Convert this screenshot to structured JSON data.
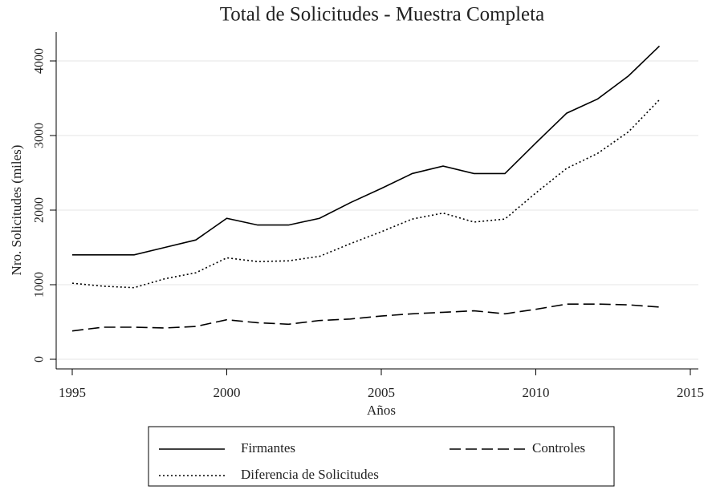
{
  "chart_data": {
    "type": "line",
    "title": "Total de Solicitudes - Muestra Completa",
    "x_label": "Años",
    "y_label": "Nro. Solicitudes (miles)",
    "x": [
      1995,
      1996,
      1997,
      1998,
      1999,
      2000,
      2001,
      2002,
      2003,
      2004,
      2005,
      2006,
      2007,
      2008,
      2009,
      2010,
      2011,
      2012,
      2013,
      2014
    ],
    "series": [
      {
        "name": "Firmantes",
        "color": "#000000",
        "line_style": "solid",
        "values": [
          1400,
          1400,
          1400,
          1500,
          1600,
          1890,
          1800,
          1800,
          1890,
          2100,
          2290,
          2490,
          2590,
          2490,
          2490,
          2900,
          3300,
          3490,
          3800,
          4200
        ]
      },
      {
        "name": "Controles",
        "color": "#000000",
        "line_style": "dashed",
        "values": [
          380,
          430,
          430,
          420,
          440,
          530,
          490,
          470,
          520,
          540,
          580,
          610,
          630,
          650,
          610,
          670,
          740,
          740,
          730,
          700
        ]
      },
      {
        "name": "Diferencia de Solicitudes",
        "color": "#000000",
        "line_style": "dotted",
        "values": [
          1020,
          980,
          960,
          1080,
          1160,
          1360,
          1310,
          1320,
          1380,
          1550,
          1710,
          1880,
          1960,
          1840,
          1880,
          2230,
          2560,
          2760,
          3050,
          3480
        ]
      }
    ],
    "xlim": [
      1995,
      2015
    ],
    "xticks": [
      1995,
      2000,
      2005,
      2010,
      2015
    ],
    "ylim": [
      0,
      4000
    ],
    "yticks": [
      0,
      1000,
      2000,
      3000,
      4000
    ],
    "grid": true,
    "legend": "bottom"
  }
}
